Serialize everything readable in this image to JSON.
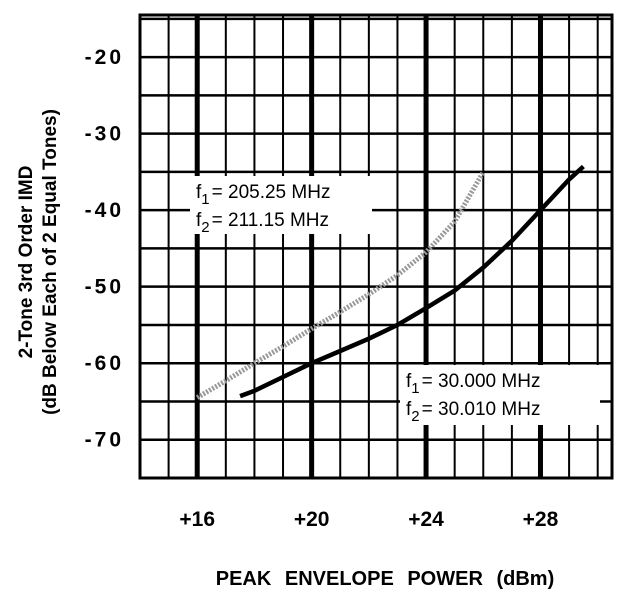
{
  "chart_data": {
    "type": "line",
    "ylabel": [
      "2-Tone 3rd Order IMD",
      "(dB Below Each of 2 Equal Tones)"
    ],
    "xlabel": "PEAK ENVELOPE POWER (dBm)",
    "xlim": [
      14,
      30.5
    ],
    "ylim": [
      -75,
      -14.5
    ],
    "xticks": [
      {
        "value": 16,
        "label": "+16"
      },
      {
        "value": 20,
        "label": "+20"
      },
      {
        "value": 24,
        "label": "+24"
      },
      {
        "value": 28,
        "label": "+28"
      }
    ],
    "yticks": [
      -20,
      -30,
      -40,
      -50,
      -60,
      -70
    ],
    "x_minor_grid": [
      15,
      17,
      18,
      19,
      21,
      22,
      23,
      25,
      26,
      27,
      29,
      30
    ],
    "y_minor_grid": [
      -15,
      -25,
      -35,
      -45,
      -55,
      -65,
      -75
    ],
    "grid": true,
    "series": [
      {
        "label_lines": [
          {
            "sym": "f",
            "sub": "1",
            "rest": "= 205.25 MHz"
          },
          {
            "sym": "f",
            "sub": "2",
            "rest": "= 211.15 MHz"
          }
        ],
        "color": "#999999",
        "style": "dotted",
        "x": [
          16,
          17,
          18,
          19,
          20,
          21,
          22,
          23,
          24,
          25,
          26
        ],
        "values": [
          -64.5,
          -62.3,
          -60,
          -57.8,
          -55.5,
          -53.3,
          -51,
          -48.5,
          -45.5,
          -41.5,
          -35
        ]
      },
      {
        "label_lines": [
          {
            "sym": "f",
            "sub": "1",
            "rest": "= 30.000 MHz"
          },
          {
            "sym": "f",
            "sub": "2",
            "rest": "= 30.010 MHz"
          }
        ],
        "color": "#000000",
        "style": "solid",
        "x": [
          17.5,
          18,
          19,
          20,
          21,
          22,
          23,
          24,
          25,
          26,
          27,
          28,
          29,
          29.5
        ],
        "values": [
          -64.3,
          -63.6,
          -61.8,
          -60,
          -58.4,
          -56.8,
          -55,
          -52.8,
          -50.5,
          -47.5,
          -44,
          -40,
          -36,
          -34.3
        ]
      }
    ]
  }
}
